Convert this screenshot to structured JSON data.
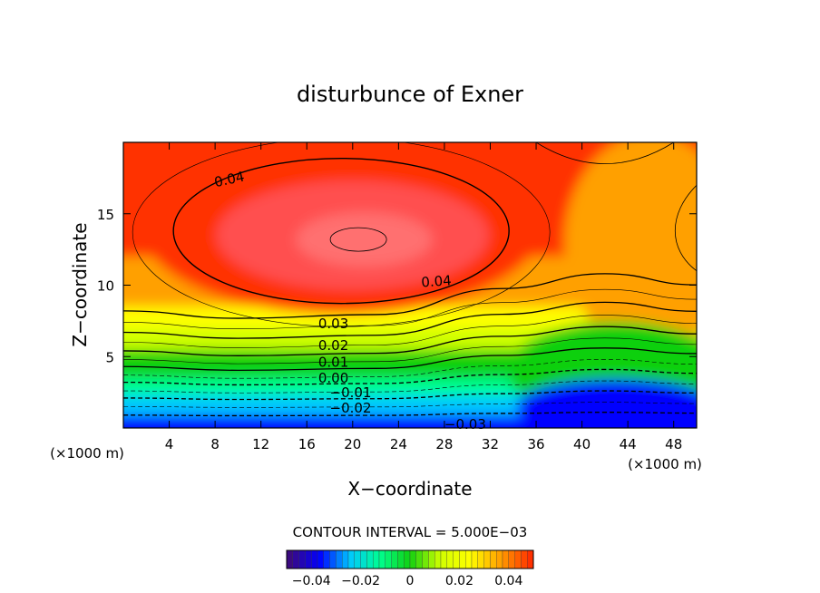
{
  "chart_data": {
    "type": "heatmap",
    "title": "disturbunce of Exner",
    "xlabel": "X−coordinate",
    "ylabel": "Z−coordinate",
    "x_unit_label": "(×1000 m)",
    "xlim": [
      0,
      50
    ],
    "ylim": [
      0,
      20
    ],
    "x_ticks": [
      4,
      8,
      12,
      16,
      20,
      24,
      28,
      32,
      36,
      40,
      44,
      48
    ],
    "y_ticks": [
      5,
      10,
      15
    ],
    "contour_interval_text": "CONTOUR INTERVAL = 5.000E−03",
    "contour_labels": [
      "0.04",
      "0.04",
      "0.03",
      "0.02",
      "0.01",
      "0.00",
      "−0.01",
      "−0.02",
      "−0.03"
    ],
    "colorbar": {
      "range": [
        -0.05,
        0.05
      ],
      "tick_labels": [
        "−0.04",
        "−0.02",
        "0",
        "0.02",
        "0.04"
      ],
      "tick_values": [
        -0.04,
        -0.02,
        0,
        0.02,
        0.04
      ]
    },
    "grid": false,
    "colormap": [
      "#3b0a80",
      "#0000ff",
      "#00c8ff",
      "#00ff90",
      "#10d010",
      "#d0ff00",
      "#ffff00",
      "#ffa000",
      "#ff3000",
      "#ff7070"
    ]
  }
}
